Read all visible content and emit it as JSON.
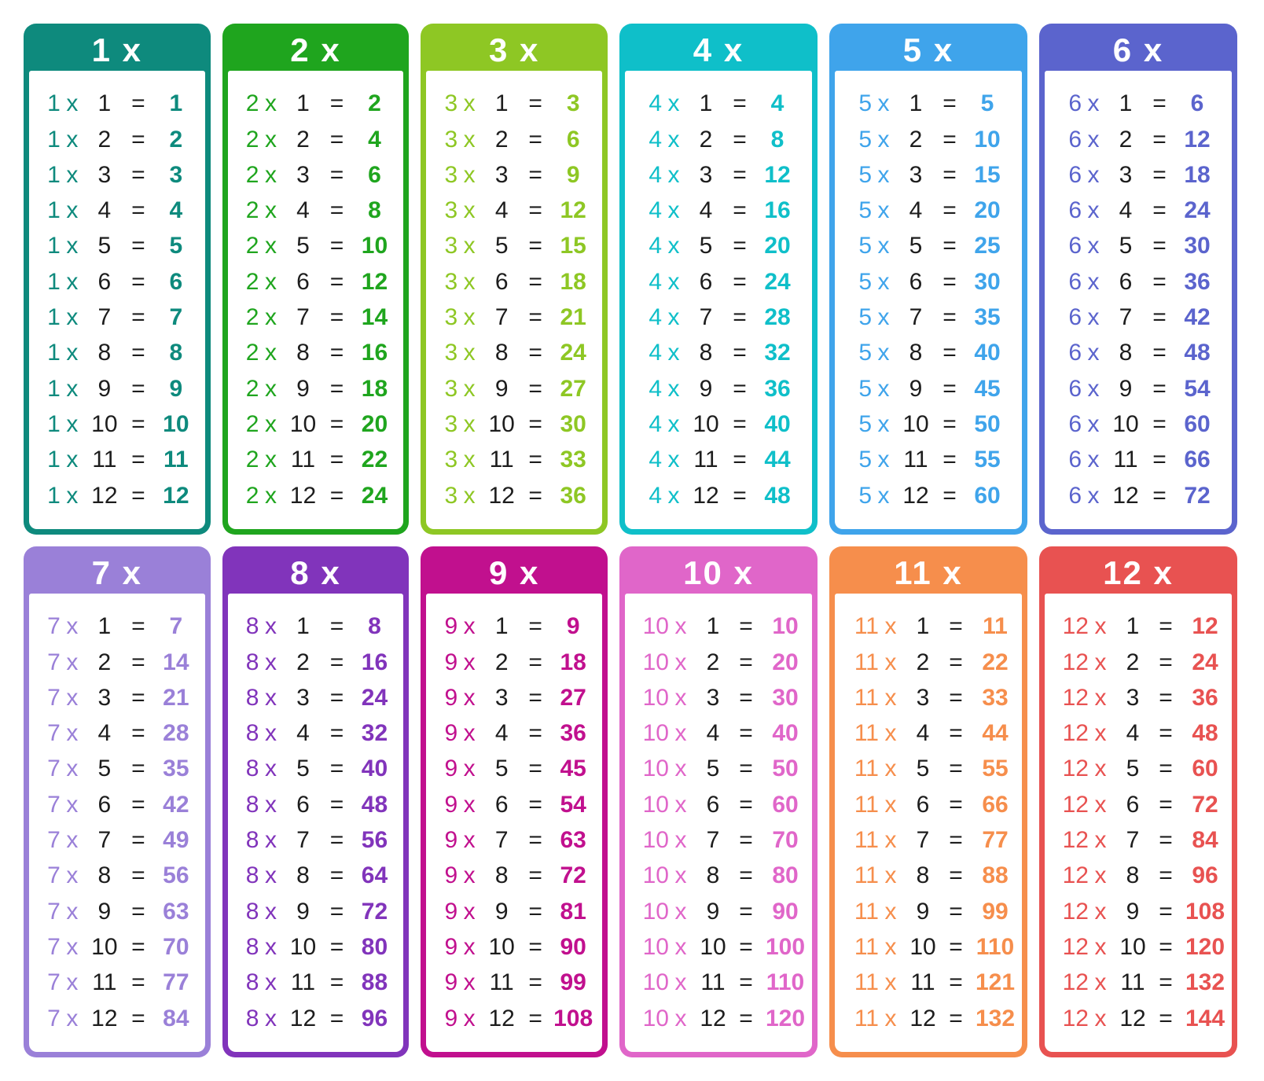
{
  "page": {
    "background": "#ffffff",
    "text_color": "#1d1d1d"
  },
  "symbols": {
    "times": "x",
    "equals": "="
  },
  "cards": [
    {
      "title": "1 x",
      "factor": 1,
      "color": "#0e8a7d",
      "rows": [
        [
          1,
          1
        ],
        [
          2,
          2
        ],
        [
          3,
          3
        ],
        [
          4,
          4
        ],
        [
          5,
          5
        ],
        [
          6,
          6
        ],
        [
          7,
          7
        ],
        [
          8,
          8
        ],
        [
          9,
          9
        ],
        [
          10,
          10
        ],
        [
          11,
          11
        ],
        [
          12,
          12
        ]
      ]
    },
    {
      "title": "2 x",
      "factor": 2,
      "color": "#1fa51e",
      "rows": [
        [
          1,
          2
        ],
        [
          2,
          4
        ],
        [
          3,
          6
        ],
        [
          4,
          8
        ],
        [
          5,
          10
        ],
        [
          6,
          12
        ],
        [
          7,
          14
        ],
        [
          8,
          16
        ],
        [
          9,
          18
        ],
        [
          10,
          20
        ],
        [
          11,
          22
        ],
        [
          12,
          24
        ]
      ]
    },
    {
      "title": "3 x",
      "factor": 3,
      "color": "#8ec724",
      "rows": [
        [
          1,
          3
        ],
        [
          2,
          6
        ],
        [
          3,
          9
        ],
        [
          4,
          12
        ],
        [
          5,
          15
        ],
        [
          6,
          18
        ],
        [
          7,
          21
        ],
        [
          8,
          24
        ],
        [
          9,
          27
        ],
        [
          10,
          30
        ],
        [
          11,
          33
        ],
        [
          12,
          36
        ]
      ]
    },
    {
      "title": "4 x",
      "factor": 4,
      "color": "#0fbfc9",
      "rows": [
        [
          1,
          4
        ],
        [
          2,
          8
        ],
        [
          3,
          12
        ],
        [
          4,
          16
        ],
        [
          5,
          20
        ],
        [
          6,
          24
        ],
        [
          7,
          28
        ],
        [
          8,
          32
        ],
        [
          9,
          36
        ],
        [
          10,
          40
        ],
        [
          11,
          44
        ],
        [
          12,
          48
        ]
      ]
    },
    {
      "title": "5 x",
      "factor": 5,
      "color": "#3fa4eb",
      "rows": [
        [
          1,
          5
        ],
        [
          2,
          10
        ],
        [
          3,
          15
        ],
        [
          4,
          20
        ],
        [
          5,
          25
        ],
        [
          6,
          30
        ],
        [
          7,
          35
        ],
        [
          8,
          40
        ],
        [
          9,
          45
        ],
        [
          10,
          50
        ],
        [
          11,
          55
        ],
        [
          12,
          60
        ]
      ]
    },
    {
      "title": "6 x",
      "factor": 6,
      "color": "#5b64cd",
      "rows": [
        [
          1,
          6
        ],
        [
          2,
          12
        ],
        [
          3,
          18
        ],
        [
          4,
          24
        ],
        [
          5,
          30
        ],
        [
          6,
          36
        ],
        [
          7,
          42
        ],
        [
          8,
          48
        ],
        [
          9,
          54
        ],
        [
          10,
          60
        ],
        [
          11,
          66
        ],
        [
          12,
          72
        ]
      ]
    },
    {
      "title": "7 x",
      "factor": 7,
      "color": "#9a80d8",
      "rows": [
        [
          1,
          7
        ],
        [
          2,
          14
        ],
        [
          3,
          21
        ],
        [
          4,
          28
        ],
        [
          5,
          35
        ],
        [
          6,
          42
        ],
        [
          7,
          49
        ],
        [
          8,
          56
        ],
        [
          9,
          63
        ],
        [
          10,
          70
        ],
        [
          11,
          77
        ],
        [
          12,
          84
        ]
      ]
    },
    {
      "title": "8 x",
      "factor": 8,
      "color": "#8134bb",
      "rows": [
        [
          1,
          8
        ],
        [
          2,
          16
        ],
        [
          3,
          24
        ],
        [
          4,
          32
        ],
        [
          5,
          40
        ],
        [
          6,
          48
        ],
        [
          7,
          56
        ],
        [
          8,
          64
        ],
        [
          9,
          72
        ],
        [
          10,
          80
        ],
        [
          11,
          88
        ],
        [
          12,
          96
        ]
      ]
    },
    {
      "title": "9 x",
      "factor": 9,
      "color": "#c1108e",
      "rows": [
        [
          1,
          9
        ],
        [
          2,
          18
        ],
        [
          3,
          27
        ],
        [
          4,
          36
        ],
        [
          5,
          45
        ],
        [
          6,
          54
        ],
        [
          7,
          63
        ],
        [
          8,
          72
        ],
        [
          9,
          81
        ],
        [
          10,
          90
        ],
        [
          11,
          99
        ],
        [
          12,
          108
        ]
      ]
    },
    {
      "title": "10 x",
      "factor": 10,
      "color": "#e066c9",
      "rows": [
        [
          1,
          10
        ],
        [
          2,
          20
        ],
        [
          3,
          30
        ],
        [
          4,
          40
        ],
        [
          5,
          50
        ],
        [
          6,
          60
        ],
        [
          7,
          70
        ],
        [
          8,
          80
        ],
        [
          9,
          90
        ],
        [
          10,
          100
        ],
        [
          11,
          110
        ],
        [
          12,
          120
        ]
      ]
    },
    {
      "title": "11 x",
      "factor": 11,
      "color": "#f68e4c",
      "rows": [
        [
          1,
          11
        ],
        [
          2,
          22
        ],
        [
          3,
          33
        ],
        [
          4,
          44
        ],
        [
          5,
          55
        ],
        [
          6,
          66
        ],
        [
          7,
          77
        ],
        [
          8,
          88
        ],
        [
          9,
          99
        ],
        [
          10,
          110
        ],
        [
          11,
          121
        ],
        [
          12,
          132
        ]
      ]
    },
    {
      "title": "12 x",
      "factor": 12,
      "color": "#e85251",
      "rows": [
        [
          1,
          12
        ],
        [
          2,
          24
        ],
        [
          3,
          36
        ],
        [
          4,
          48
        ],
        [
          5,
          60
        ],
        [
          6,
          72
        ],
        [
          7,
          84
        ],
        [
          8,
          96
        ],
        [
          9,
          108
        ],
        [
          10,
          120
        ],
        [
          11,
          132
        ],
        [
          12,
          144
        ]
      ]
    }
  ]
}
